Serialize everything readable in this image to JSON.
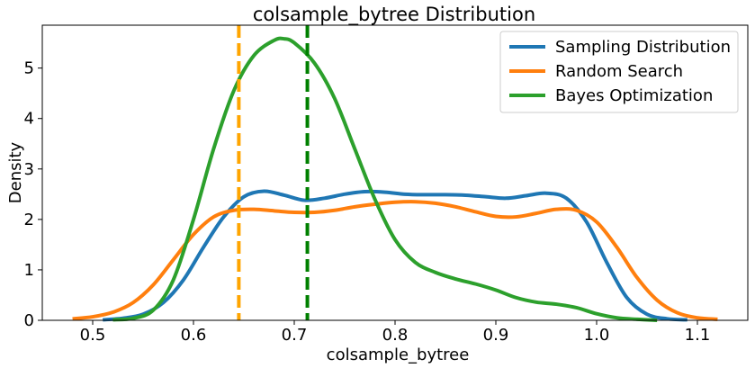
{
  "chart_data": {
    "type": "line",
    "title": "colsample_bytree Distribution",
    "xlabel": "colsample_bytree",
    "ylabel": "Density",
    "xlim": [
      0.45,
      1.15
    ],
    "ylim": [
      0,
      5.85
    ],
    "xticks": [
      0.5,
      0.6,
      0.7,
      0.8,
      0.9,
      1.0,
      1.1
    ],
    "xtick_labels": [
      "0.5",
      "0.6",
      "0.7",
      "0.8",
      "0.9",
      "1.0",
      "1.1"
    ],
    "yticks": [
      0,
      1,
      2,
      3,
      4,
      5
    ],
    "ytick_labels": [
      "0",
      "1",
      "2",
      "3",
      "4",
      "5"
    ],
    "grid": false,
    "legend_position": "top-right",
    "series": [
      {
        "name": "Sampling Distribution",
        "color": "#1f77b4",
        "x": [
          0.51,
          0.53,
          0.55,
          0.57,
          0.59,
          0.61,
          0.63,
          0.65,
          0.67,
          0.69,
          0.71,
          0.73,
          0.75,
          0.77,
          0.79,
          0.81,
          0.83,
          0.85,
          0.87,
          0.89,
          0.91,
          0.93,
          0.95,
          0.97,
          0.99,
          1.01,
          1.03,
          1.05,
          1.07,
          1.09
        ],
        "y": [
          0.01,
          0.04,
          0.12,
          0.35,
          0.8,
          1.45,
          2.05,
          2.45,
          2.56,
          2.48,
          2.38,
          2.42,
          2.5,
          2.55,
          2.54,
          2.5,
          2.49,
          2.49,
          2.48,
          2.45,
          2.42,
          2.47,
          2.52,
          2.42,
          1.95,
          1.15,
          0.45,
          0.12,
          0.03,
          0.01
        ]
      },
      {
        "name": "Random Search",
        "color": "#ff7f0e",
        "x": [
          0.48,
          0.5,
          0.52,
          0.54,
          0.56,
          0.58,
          0.6,
          0.62,
          0.64,
          0.66,
          0.68,
          0.7,
          0.72,
          0.74,
          0.76,
          0.78,
          0.8,
          0.82,
          0.84,
          0.86,
          0.88,
          0.9,
          0.92,
          0.94,
          0.96,
          0.98,
          1.0,
          1.02,
          1.04,
          1.06,
          1.08,
          1.1,
          1.12
        ],
        "y": [
          0.03,
          0.07,
          0.16,
          0.35,
          0.7,
          1.2,
          1.7,
          2.05,
          2.18,
          2.2,
          2.17,
          2.14,
          2.14,
          2.18,
          2.25,
          2.3,
          2.34,
          2.35,
          2.32,
          2.25,
          2.15,
          2.06,
          2.05,
          2.12,
          2.2,
          2.18,
          1.95,
          1.45,
          0.85,
          0.4,
          0.15,
          0.05,
          0.02
        ]
      },
      {
        "name": "Bayes Optimization",
        "color": "#2ca02c",
        "x": [
          0.52,
          0.54,
          0.56,
          0.58,
          0.6,
          0.62,
          0.64,
          0.66,
          0.68,
          0.69,
          0.7,
          0.72,
          0.74,
          0.76,
          0.78,
          0.8,
          0.82,
          0.84,
          0.86,
          0.88,
          0.9,
          0.92,
          0.94,
          0.96,
          0.98,
          1.0,
          1.02,
          1.04,
          1.06
        ],
        "y": [
          0.01,
          0.04,
          0.2,
          0.8,
          2.0,
          3.4,
          4.55,
          5.25,
          5.55,
          5.58,
          5.5,
          5.1,
          4.4,
          3.4,
          2.4,
          1.6,
          1.15,
          0.95,
          0.82,
          0.72,
          0.6,
          0.45,
          0.36,
          0.32,
          0.25,
          0.13,
          0.05,
          0.02,
          0.0
        ]
      }
    ],
    "vlines": [
      {
        "x": 0.645,
        "color": "#ffa500"
      },
      {
        "x": 0.713,
        "color": "#008000"
      }
    ]
  }
}
